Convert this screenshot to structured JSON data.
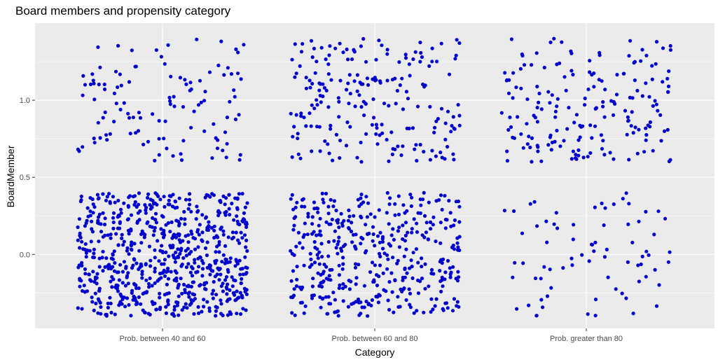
{
  "chart_data": {
    "type": "scatter",
    "title": "Board members and propensity category",
    "xlabel": "Category",
    "ylabel": "BoardMember",
    "categories": [
      "Prob. between 40 and 60",
      "Prob. between 60 and 80",
      "Prob. greater than 80"
    ],
    "y_ticks": [
      "0.0",
      "0.5",
      "1.0"
    ],
    "ylim": [
      -0.48,
      1.5
    ],
    "jitter": {
      "x": 0.4,
      "y": 0.4
    },
    "grid": true,
    "point_color": "#0000CD",
    "panel_background": "#EBEBEB",
    "grid_color": "#FFFFFF",
    "groups": [
      {
        "category": "Prob. between 40 and 60",
        "value": 0,
        "count": 720
      },
      {
        "category": "Prob. between 40 and 60",
        "value": 1,
        "count": 115
      },
      {
        "category": "Prob. between 60 and 80",
        "value": 0,
        "count": 430
      },
      {
        "category": "Prob. between 60 and 80",
        "value": 1,
        "count": 210
      },
      {
        "category": "Prob. greater than 80",
        "value": 0,
        "count": 75
      },
      {
        "category": "Prob. greater than 80",
        "value": 1,
        "count": 185
      }
    ]
  }
}
